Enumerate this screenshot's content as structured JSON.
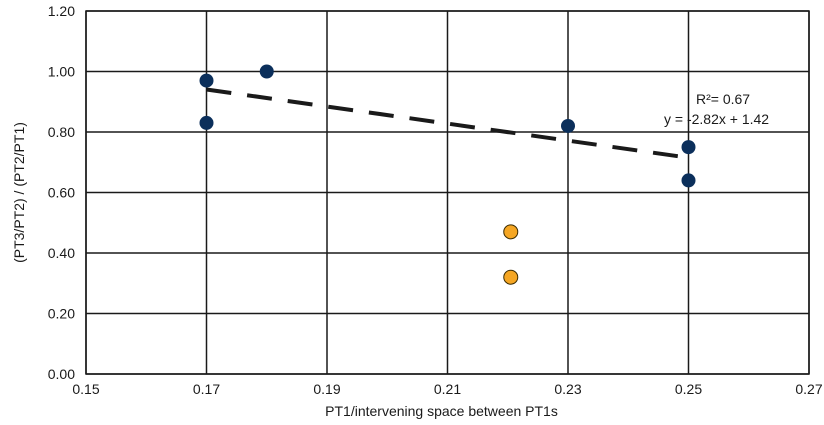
{
  "chart_data": {
    "type": "scatter",
    "title": "",
    "xlabel": "PT1/intervening space between PT1s",
    "ylabel": "(PT3/PT2) / (PT2/PT1)",
    "xlim": [
      0.15,
      0.27
    ],
    "ylim": [
      0.0,
      1.2
    ],
    "x_ticks": [
      "0.15",
      "0.17",
      "0.19",
      "0.21",
      "0.23",
      "0.25",
      "0.27"
    ],
    "y_ticks": [
      "0.00",
      "0.20",
      "0.40",
      "0.60",
      "0.80",
      "1.00",
      "1.20"
    ],
    "grid": true,
    "legend": "none",
    "series": [
      {
        "color": "#0b2f5b",
        "points": [
          {
            "x": 0.17,
            "y": 0.97
          },
          {
            "x": 0.17,
            "y": 0.83
          },
          {
            "x": 0.18,
            "y": 1.0
          },
          {
            "x": 0.23,
            "y": 0.82
          },
          {
            "x": 0.25,
            "y": 0.75
          },
          {
            "x": 0.25,
            "y": 0.64
          }
        ]
      },
      {
        "color": "#f5a623",
        "points": [
          {
            "x": 0.2205,
            "y": 0.47
          },
          {
            "x": 0.2205,
            "y": 0.32
          }
        ]
      }
    ],
    "trendline": {
      "slope": -2.82,
      "intercept": 1.42,
      "x_range": [
        0.17,
        0.25
      ],
      "style": "dashed",
      "color": "#1a1a1a"
    },
    "annotations": {
      "r_squared": "R²= 0.67",
      "equation": "y = -2.82x + 1.42"
    }
  }
}
